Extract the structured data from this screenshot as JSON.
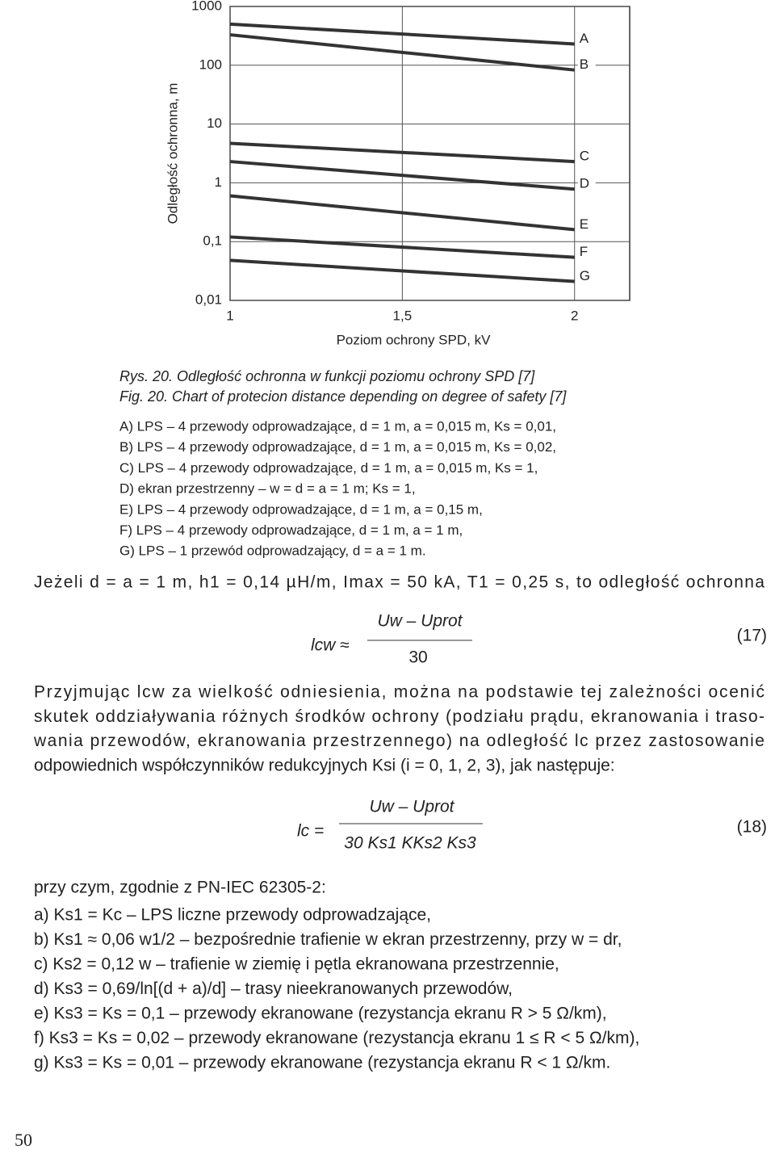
{
  "chart_data": {
    "type": "line",
    "y_label": "Odległość ochronna, m",
    "x_label": "Poziom ochrony SPD, kV",
    "log_y": true,
    "grid": true,
    "x": [
      1,
      2
    ],
    "xlim": [
      1,
      2.16
    ],
    "ylim": [
      0.01,
      1000
    ],
    "xticks": [
      1,
      {
        "value": 1.5,
        "label": "1,5"
      },
      2
    ],
    "yticks": [
      {
        "value": 0.01,
        "label": "0,01"
      },
      {
        "value": 0.1,
        "label": "0,1"
      },
      1,
      10,
      100,
      1000
    ],
    "series": [
      {
        "name": "A",
        "color": "#333333",
        "values": [
          500,
          230
        ]
      },
      {
        "name": "B",
        "color": "#333333",
        "values": [
          330,
          83
        ]
      },
      {
        "name": "C",
        "color": "#333333",
        "values": [
          4.7,
          2.3
        ]
      },
      {
        "name": "D",
        "color": "#333333",
        "values": [
          2.3,
          0.78
        ]
      },
      {
        "name": "E",
        "color": "#333333",
        "values": [
          0.6,
          0.16
        ]
      },
      {
        "name": "F",
        "color": "#333333",
        "values": [
          0.12,
          0.054
        ]
      },
      {
        "name": "G",
        "color": "#333333",
        "values": [
          0.048,
          0.021
        ]
      }
    ]
  },
  "caption": {
    "pl": "Rys. 20. Odległość ochronna w funkcji poziomu ochrony SPD [7]",
    "en": "Fig. 20. Chart of protecion distance depending on degree of safety [7]"
  },
  "legend_items": [
    "A) LPS – 4 przewody odprowadzające, d = 1 m, a = 0,015 m, Ks = 0,01,",
    "B) LPS – 4 przewody odprowadzające, d = 1 m, a = 0,015 m, Ks = 0,02,",
    "C) LPS – 4 przewody odprowadzające, d = 1 m, a = 0,015 m, Ks = 1,",
    "D) ekran przestrzenny – w = d = a = 1 m; Ks = 1,",
    "E) LPS – 4 przewody odprowadzające, d = 1 m, a = 0,15 m,",
    "F) LPS – 4 przewody odprowadzające, d = 1 m, a = 1 m,",
    "G) LPS – 1 przewód odprowadzający, d = a = 1 m."
  ],
  "body": {
    "intro": "Jeżeli d = a = 1 m, h1 = 0,14 µH/m, Imax = 50 kA, T1 = 0,25 s, to odległość ochronna",
    "formula_17": {
      "lhs": "lcw ≈",
      "numerator": "Uw – Uprot",
      "denominator": "30",
      "number": "(17)"
    },
    "paragraph": [
      "Przyjmując lcw za wielkość odniesienia, można na podstawie tej zależności ocenić",
      "skutek oddziaływania różnych środków ochrony (podziału prądu, ekranowania i traso-",
      "wania przewodów, ekranowania przestrzennego) na odległość lc przez zastosowanie",
      "odpowiednich współczynników redukcyjnych Ksi (i = 0, 1, 2, 3), jak następuje:"
    ],
    "formula_18": {
      "lhs": "lc =",
      "numerator": "Uw – Uprot",
      "denominator": "30 Ks1 KKs2 Ks3",
      "number": "(18)"
    },
    "list_intro": "przy czym, zgodnie z PN-IEC 62305-2:",
    "list": [
      "a) Ks1 = Kc – LPS liczne przewody odprowadzające,",
      "b) Ks1 ≈ 0,06 w1/2 – bezpośrednie trafienie w ekran przestrzenny, przy w = dr,",
      "c) Ks2 = 0,12 w – trafienie w ziemię i pętla ekranowana przestrzennie,",
      "d) Ks3 = 0,69/ln[(d + a)/d] – trasy nieekranowanych przewodów,",
      "e) Ks3 = Ks = 0,1 – przewody ekranowane (rezystancja ekranu R > 5 Ω/km),",
      "f) Ks3 = Ks = 0,02 – przewody ekranowane (rezystancja ekranu 1 ≤ R < 5 Ω/km),",
      "g) Ks3 = Ks = 0,01 – przewody ekranowane (rezystancja ekranu R < 1 Ω/km."
    ]
  },
  "page_number": "50"
}
